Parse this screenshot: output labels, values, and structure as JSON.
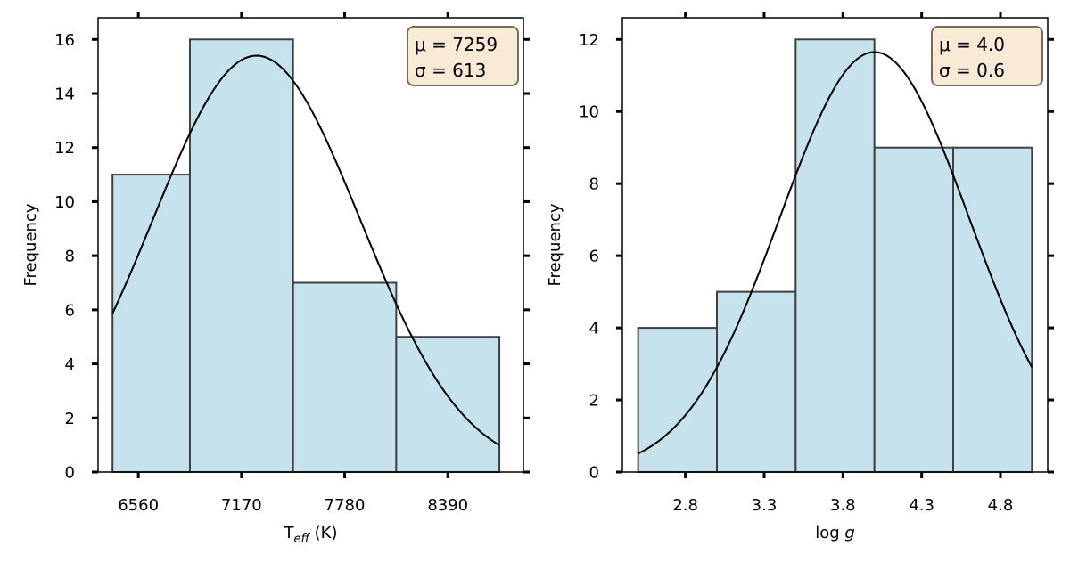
{
  "chart_data": [
    {
      "type": "bar",
      "subtype": "histogram",
      "title": "",
      "xlabel": "T",
      "xlabel_sub": "eff",
      "xlabel_suffix": " (K)",
      "ylabel": "Frequency",
      "bin_edges": [
        6407.5,
        6865,
        7475,
        8085,
        8695
      ],
      "values": [
        11,
        16,
        7,
        5
      ],
      "xticks": [
        6560,
        7170,
        7780,
        8390
      ],
      "xtick_labels": [
        "6560",
        "7170",
        "7780",
        "8390"
      ],
      "xlim": [
        6322,
        8837
      ],
      "ylim": [
        0,
        16.8
      ],
      "yticks": [
        0,
        2,
        4,
        6,
        8,
        10,
        12,
        14,
        16
      ],
      "yticklabels": [
        "0",
        "2",
        "4",
        "6",
        "8",
        "10",
        "12",
        "14",
        "16"
      ],
      "fit": {
        "mu": 7259,
        "sigma": 613,
        "peak": 15.4,
        "x_range": [
          6407.5,
          8695
        ]
      },
      "stats": {
        "mu_label": "μ = 7259",
        "sigma_label": "σ = 613"
      },
      "bar_color": "#c6e2ec",
      "edge_color": "#404040",
      "box_color": "#f9ead5",
      "grid": false
    },
    {
      "type": "bar",
      "subtype": "histogram",
      "title": "",
      "xlabel": "log ",
      "xlabel_italic": "g",
      "ylabel": "Frequency",
      "bin_edges": [
        2.5,
        3.0,
        3.5,
        4.0,
        4.5,
        5.0
      ],
      "values": [
        4,
        5,
        12,
        9,
        9
      ],
      "xticks": [
        2.8,
        3.3,
        3.8,
        4.3,
        4.8
      ],
      "xtick_labels": [
        "2.8",
        "3.3",
        "3.8",
        "4.3",
        "4.8"
      ],
      "xlim": [
        2.4,
        5.1
      ],
      "ylim": [
        0,
        12.6
      ],
      "yticks": [
        0,
        2,
        4,
        6,
        8,
        10,
        12
      ],
      "yticklabels": [
        "0",
        "2",
        "4",
        "6",
        "8",
        "10",
        "12"
      ],
      "fit": {
        "mu": 4.0,
        "sigma": 0.6,
        "peak": 11.65,
        "x_range": [
          2.5,
          5.0
        ]
      },
      "stats": {
        "mu_label": "μ = 4.0",
        "sigma_label": "σ = 0.6"
      },
      "bar_color": "#c6e2ec",
      "edge_color": "#404040",
      "box_color": "#f9ead5",
      "grid": false
    }
  ]
}
